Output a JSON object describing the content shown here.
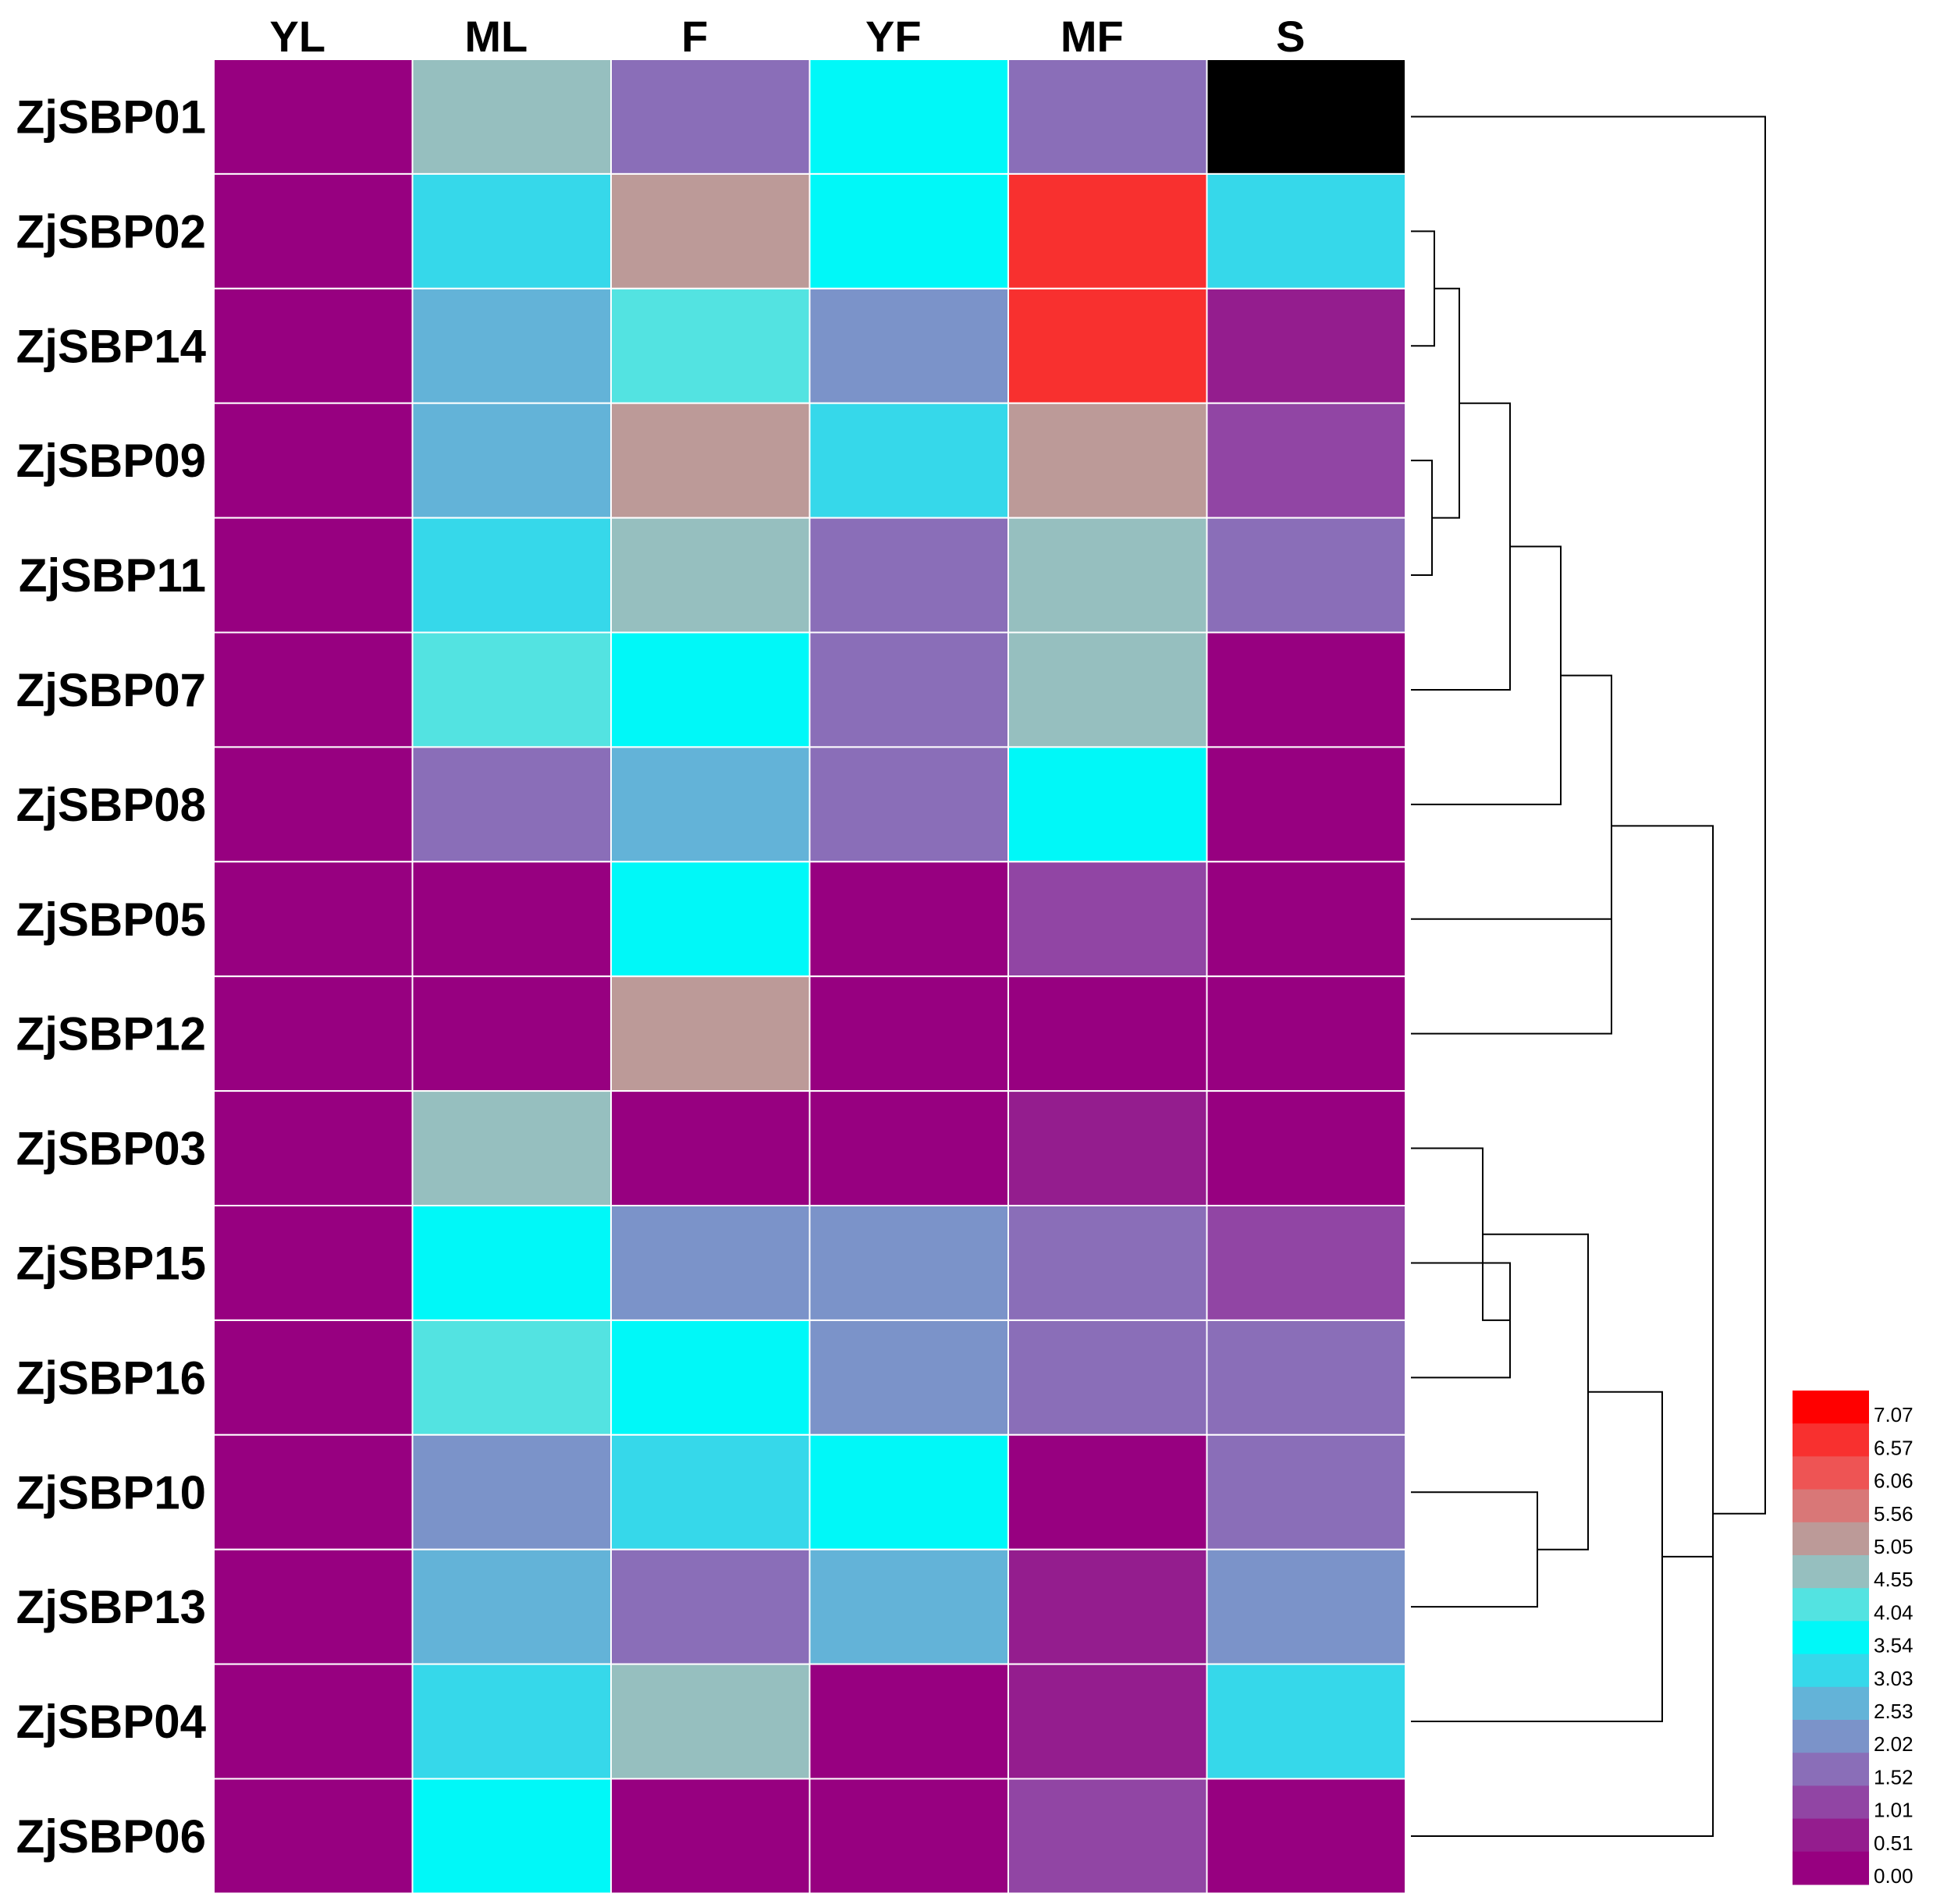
{
  "chart_data": {
    "type": "heatmap",
    "columns": [
      "YL",
      "ML",
      "F",
      "YF",
      "MF",
      "S"
    ],
    "rows": [
      "ZjSBP01",
      "ZjSBP02",
      "ZjSBP14",
      "ZjSBP09",
      "ZjSBP11",
      "ZjSBP07",
      "ZjSBP08",
      "ZjSBP05",
      "ZjSBP12",
      "ZjSBP03",
      "ZjSBP15",
      "ZjSBP16",
      "ZjSBP10",
      "ZjSBP13",
      "ZjSBP04",
      "ZjSBP06"
    ],
    "values": [
      [
        0,
        5.0,
        2.0,
        4.0,
        2.0,
        7.5
      ],
      [
        0,
        3.5,
        5.5,
        4.0,
        7.0,
        3.5
      ],
      [
        0,
        3.0,
        4.5,
        2.5,
        7.0,
        1.0
      ],
      [
        0,
        3.0,
        5.5,
        3.5,
        5.5,
        1.5
      ],
      [
        0,
        3.5,
        5.0,
        2.0,
        5.0,
        2.0
      ],
      [
        0,
        4.5,
        4.0,
        2.0,
        5.0,
        0
      ],
      [
        0,
        2.0,
        3.0,
        2.0,
        4.0,
        0
      ],
      [
        0,
        0.5,
        4.0,
        0.5,
        1.5,
        0
      ],
      [
        0,
        0,
        5.5,
        0.5,
        0,
        0
      ],
      [
        0,
        5.0,
        0,
        0,
        1.0,
        0
      ],
      [
        0,
        4.0,
        2.5,
        2.5,
        2.0,
        1.5
      ],
      [
        0,
        4.5,
        4.0,
        2.5,
        2.0,
        2.0
      ],
      [
        0,
        2.5,
        3.5,
        4.0,
        0.5,
        2.0
      ],
      [
        0,
        3.0,
        2.0,
        3.0,
        1.0,
        2.5
      ],
      [
        0,
        3.5,
        5.0,
        0,
        1.0,
        3.5
      ],
      [
        0,
        4.0,
        0,
        0,
        1.5,
        0
      ]
    ],
    "legend": {
      "labels": [
        "7.07",
        "6.57",
        "6.06",
        "5.56",
        "5.05",
        "4.55",
        "4.04",
        "3.54",
        "3.03",
        "2.53",
        "2.02",
        "1.52",
        "1.01",
        "0.51",
        "0.00"
      ],
      "colors": [
        "#ff0000",
        "#f8302f",
        "#ee5454",
        "#d97777",
        "#bc9a98",
        "#96bfbf",
        "#53e3e1",
        "#00f8f8",
        "#36d8ea",
        "#63b3d8",
        "#7b93c9",
        "#8a6eb8",
        "#9145a4",
        "#941d8e",
        "#970080"
      ],
      "overflow_color": "#000000",
      "placement": "bottom-right"
    },
    "dendrogram": {
      "side": "right",
      "links": [
        [
          1,
          2
        ],
        [
          3,
          4
        ],
        [
          16,
          17
        ],
        [
          18,
          5
        ],
        [
          19,
          6
        ],
        [
          7,
          8
        ],
        [
          20,
          21
        ],
        [
          10,
          11
        ],
        [
          9,
          23
        ],
        [
          12,
          13
        ],
        [
          24,
          25
        ],
        [
          26,
          14
        ],
        [
          22,
          27
        ],
        [
          28,
          15
        ],
        [
          0,
          29
        ]
      ]
    }
  }
}
